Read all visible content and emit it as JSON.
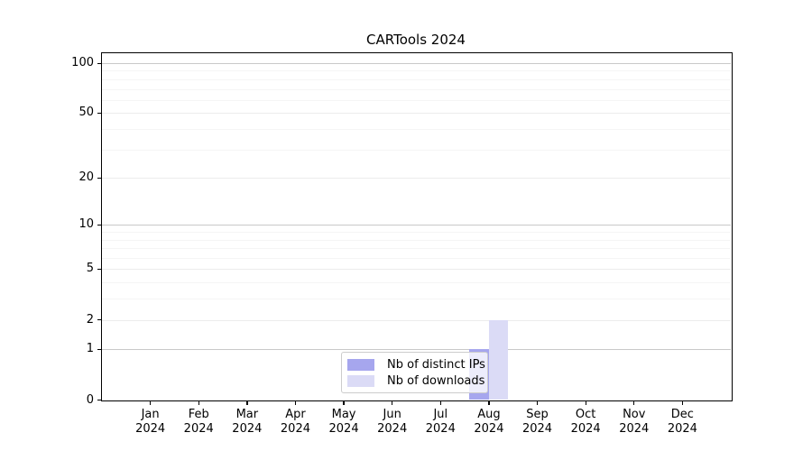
{
  "chart_data": {
    "type": "bar",
    "title": "CARTools 2024",
    "categories": [
      "Jan",
      "Feb",
      "Mar",
      "Apr",
      "May",
      "Jun",
      "Jul",
      "Aug",
      "Sep",
      "Oct",
      "Nov",
      "Dec"
    ],
    "x_tick_year": "2024",
    "series": [
      {
        "name": "Nb of distinct IPs",
        "color": "#a6a6ee",
        "values": [
          0,
          0,
          0,
          0,
          0,
          0,
          0,
          1,
          0,
          0,
          0,
          0
        ]
      },
      {
        "name": "Nb of downloads",
        "color": "#dbdbf6",
        "values": [
          0,
          0,
          0,
          0,
          0,
          0,
          0,
          2,
          0,
          0,
          0,
          0
        ]
      }
    ],
    "yscale": "log1p",
    "ylim": [
      0,
      115
    ],
    "y_major_ticks": [
      0,
      1,
      2,
      5,
      10,
      20,
      50,
      100
    ],
    "y_emphasized_gridlines": [
      1,
      10,
      100
    ],
    "y_light_gridlines": [
      2,
      5,
      20,
      50
    ],
    "y_minor_gridlines": [
      3,
      4,
      6,
      7,
      8,
      9,
      30,
      40,
      60,
      70,
      80,
      90
    ],
    "grid": true,
    "legend_position": "lower center",
    "colors": {
      "background": "#ffffff",
      "axis": "#000000",
      "text": "#000000",
      "grid_emphasized": "#c9c9c9",
      "grid_major": "#ececec",
      "grid_minor": "#f5f5f5",
      "legend_border": "#cccccc",
      "legend_background": "rgba(255,255,255,0.8)"
    }
  }
}
